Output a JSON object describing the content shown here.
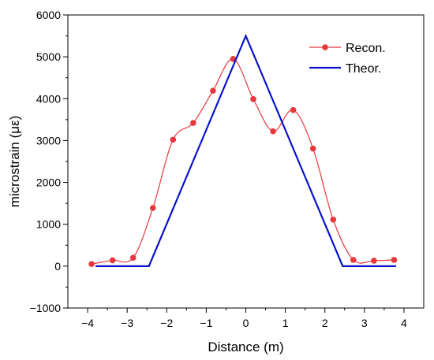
{
  "chart_data": {
    "type": "line",
    "xlabel": "Distance (m)",
    "ylabel": "microstrain (με)",
    "xlim": [
      -4.5,
      4.5
    ],
    "ylim": [
      -1000,
      6000
    ],
    "x_ticks": [
      -4,
      -3,
      -2,
      -1,
      0,
      1,
      2,
      3,
      4
    ],
    "x_tick_labels": [
      "−4",
      "−3",
      "−2",
      "−1",
      "0",
      "1",
      "2",
      "3",
      "4"
    ],
    "y_ticks": [
      -1000,
      0,
      1000,
      2000,
      3000,
      4000,
      5000,
      6000
    ],
    "y_tick_labels": [
      "−1000",
      "0",
      "1000",
      "2000",
      "3000",
      "4000",
      "5000",
      "6000"
    ],
    "grid": false,
    "legend_position": "top-right",
    "series": [
      {
        "name": "Recon.",
        "color": "#e8383d",
        "marker": "circle",
        "smooth": true,
        "x": [
          -3.9,
          -3.37,
          -2.85,
          -2.35,
          -1.84,
          -1.33,
          -0.83,
          -0.32,
          0.19,
          0.69,
          1.2,
          1.7,
          2.21,
          2.72,
          3.24,
          3.75
        ],
        "y": [
          50,
          140,
          200,
          1390,
          3020,
          3420,
          4190,
          4950,
          3990,
          3220,
          3730,
          2810,
          1110,
          150,
          130,
          150
        ]
      },
      {
        "name": "Theor.",
        "color": "#0a14c8",
        "marker": "none",
        "smooth": false,
        "x": [
          -3.8,
          -2.45,
          0.0,
          2.45,
          3.8
        ],
        "y": [
          0,
          0,
          5500,
          0,
          0
        ]
      }
    ]
  }
}
